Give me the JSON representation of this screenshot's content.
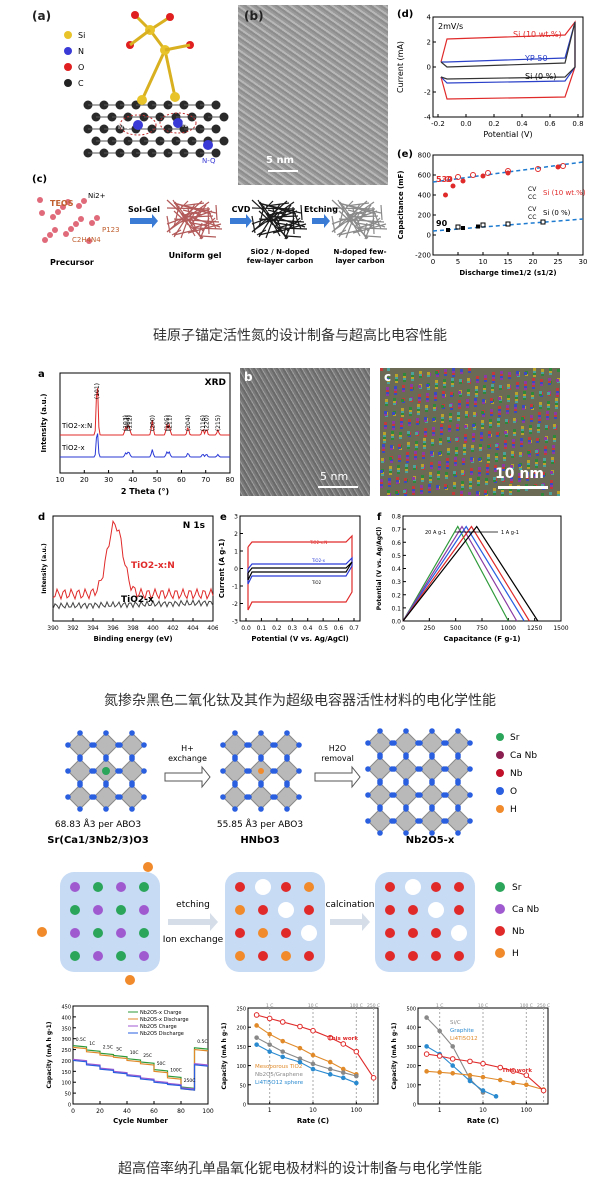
{
  "captions": {
    "c1": "硅原子锚定活性氮的设计制备与超高比电容性能",
    "c2": "氮掺杂黑色二氧化钛及其作为超级电容器活性材料的电化学性能",
    "c3": "超高倍率纳孔单晶氧化铌电极材料的设计制备与电化学性能"
  },
  "fig1": {
    "a": {
      "label": "(a)",
      "legend": [
        "Si",
        "N",
        "O",
        "C"
      ],
      "tags": [
        "N-6",
        "N-5",
        "N-Q"
      ],
      "colors": {
        "Si": "#e8c42a",
        "N": "#3a3ad6",
        "O": "#e02020",
        "C": "#222222"
      }
    },
    "b": {
      "label": "(b)",
      "scale": "5 nm"
    },
    "c": {
      "label": "(c)",
      "steps": [
        "Precursor",
        "Uniform gel",
        "SiO2 / N-doped\nfew-layer carbon",
        "N-doped few-\nlayer carbon"
      ],
      "arrows": [
        "Sol-Gel",
        "CVD",
        "Etching"
      ],
      "reagents": [
        "TEOS",
        "Ni2+",
        "C2H4N4",
        "P123"
      ]
    },
    "d": {
      "label": "(d)",
      "rate": "2mV/s",
      "xlabel": "Potential (V)",
      "ylabel": "Current (mA)",
      "xticks": [
        "-0.2",
        "0.0",
        "0.2",
        "0.4",
        "0.6",
        "0.8"
      ],
      "yticks": [
        "-4",
        "-2",
        "0",
        "2",
        "4"
      ],
      "series": [
        "Si (10 wt.%)",
        "YP-50",
        "Si (0 %)"
      ]
    },
    "e": {
      "label": "(e)",
      "xlabel": "Discharge time1/2 (s1/2)",
      "ylabel": "Capacitance (mF)",
      "xticks": [
        "0",
        "5",
        "10",
        "15",
        "20",
        "25",
        "30"
      ],
      "yticks": [
        "-200",
        "0",
        "200",
        "400",
        "600",
        "800"
      ],
      "ann": [
        "530",
        "90"
      ],
      "legend": [
        "CV",
        "CC",
        "Si (10 wt.%)",
        "CV",
        "CC",
        "Si (0 %)"
      ]
    }
  },
  "fig2": {
    "a": {
      "label": "a",
      "title": "XRD",
      "xlabel": "2 Theta (°)",
      "ylabel": "Intensity (a.u.)",
      "xticks": [
        "10",
        "20",
        "30",
        "40",
        "50",
        "60",
        "70",
        "80"
      ],
      "peaks": [
        "(101)",
        "(103)",
        "(004)",
        "(112)",
        "(200)",
        "(105)",
        "(211)",
        "(204)",
        "(116)",
        "(220)",
        "(215)"
      ],
      "series": [
        "TiO2-x:N",
        "TiO2-x"
      ]
    },
    "b": {
      "label": "b",
      "scale": "5 nm"
    },
    "c": {
      "label": "c",
      "scale": "10 nm"
    },
    "d": {
      "label": "d",
      "title": "N 1s",
      "xlabel": "Binding energy (eV)",
      "ylabel": "Intensity (a.u.)",
      "xticks": [
        "390",
        "392",
        "394",
        "396",
        "398",
        "400",
        "402",
        "404",
        "406"
      ],
      "series": [
        "TiO2-x:N",
        "TiO2-x"
      ]
    },
    "e": {
      "label": "e",
      "xlabel": "Potential (V vs. Ag/AgCl)",
      "ylabel": "Current (A g-1)",
      "xticks": [
        "0.0",
        "0.1",
        "0.2",
        "0.3",
        "0.4",
        "0.5",
        "0.6",
        "0.7"
      ],
      "yticks": [
        "-3",
        "-2",
        "-1",
        "0",
        "1",
        "2",
        "3"
      ],
      "series": [
        "TiO2-x:N",
        "TiO2-x",
        "TiO2"
      ]
    },
    "f": {
      "label": "f",
      "xlabel": "Capacitance (F g-1)",
      "ylabel": "Potential (V vs. Ag/AgCl)",
      "xticks": [
        "0",
        "250",
        "500",
        "750",
        "1000",
        "1250",
        "1500"
      ],
      "yticks": [
        "0.0",
        "0.1",
        "0.2",
        "0.3",
        "0.4",
        "0.5",
        "0.6",
        "0.7",
        "0.8"
      ],
      "ann": [
        "20 A g-1",
        "1 A g-1"
      ]
    }
  },
  "fig3": {
    "top": {
      "arrow1": [
        "H+",
        "exchange"
      ],
      "arrow2": [
        "H2O",
        "removal"
      ],
      "vol1": "68.83 Å3 per ABO3",
      "vol2": "55.85 Å3 per ABO3",
      "name1": "Sr(Ca1/3Nb2/3)O3",
      "name2": "HNbO3",
      "name3": "Nb2O5-x",
      "legend": [
        "Sr",
        "Ca Nb",
        "Nb",
        "O",
        "H"
      ],
      "colors": [
        "#2aa55a",
        "#8a1f50",
        "#c0102a",
        "#2a5fe0",
        "#f08a2a"
      ]
    },
    "mid": {
      "arrow1": [
        "etching",
        "Ion exchange"
      ],
      "arrow2": [
        "calcination"
      ],
      "legend": [
        "Sr",
        "Ca Nb",
        "Nb",
        "H"
      ]
    },
    "g1": {
      "xlabel": "Cycle Number",
      "ylabel": "Capacity (mA h g-1)",
      "xticks": [
        "0",
        "20",
        "40",
        "60",
        "80",
        "100"
      ],
      "yticks": [
        "0",
        "50",
        "100",
        "150",
        "200",
        "250",
        "300",
        "350",
        "400",
        "450"
      ],
      "legend": [
        "Nb2O5-x Charge",
        "Nb2O5-x Discharge",
        "Nb2O5 Charge",
        "Nb2O5 Discharge"
      ],
      "rates": [
        "0.5C",
        "1C",
        "2.5C",
        "5C",
        "10C",
        "25C",
        "50C",
        "100C",
        "250C",
        "0.5C"
      ]
    },
    "g2": {
      "xlabel": "Rate (C)",
      "ylabel": "Capacity (mA h g-1)",
      "toprates": [
        "1 C",
        "10 C",
        "100 C",
        "250 C"
      ],
      "ann": [
        "This work",
        "Mesoporous TiO2",
        "Nb2O5/Graphene",
        "Li4Ti5O12 sphere"
      ],
      "yticks": [
        "0",
        "50",
        "100",
        "150",
        "200",
        "250"
      ],
      "xticks": [
        "1",
        "10",
        "100"
      ]
    },
    "g3": {
      "xlabel": "Rate (C)",
      "ylabel": "Capacity (mA h g-1)",
      "toprates": [
        "1 C",
        "10 C",
        "100 C",
        "250 C"
      ],
      "ann": [
        "Si/C",
        "Graphite",
        "Li4Ti5O12",
        "This work"
      ],
      "yticks": [
        "0",
        "100",
        "200",
        "300",
        "400",
        "500"
      ],
      "xticks": [
        "1",
        "10",
        "100"
      ]
    }
  }
}
